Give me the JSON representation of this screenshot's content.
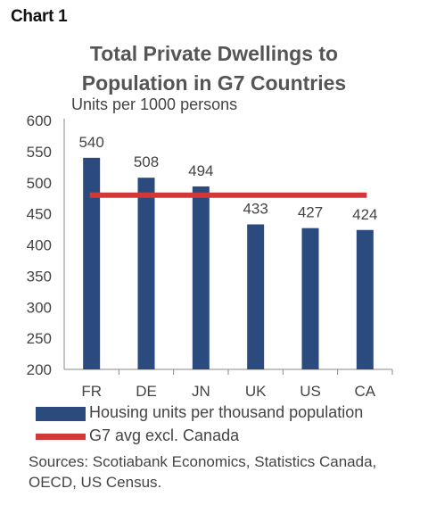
{
  "chart_label": "Chart 1",
  "chart_data": {
    "type": "bar",
    "title_lines": [
      "Total Private Dwellings to",
      "Population in G7 Countries"
    ],
    "ylabel": "Units per 1000 persons",
    "categories": [
      "FR",
      "DE",
      "JN",
      "UK",
      "US",
      "CA"
    ],
    "series": [
      {
        "name": "Housing units per thousand population",
        "type": "bar",
        "values": [
          540,
          508,
          494,
          433,
          427,
          424
        ],
        "color": "#2b4a7e"
      },
      {
        "name": "G7 avg excl. Canada",
        "type": "line",
        "value": 480,
        "color": "#d33838"
      }
    ],
    "data_labels": [
      "540",
      "508",
      "494",
      "433",
      "427",
      "424"
    ],
    "ylim": [
      200,
      600
    ],
    "yticks": [
      "200",
      "250",
      "300",
      "350",
      "400",
      "450",
      "500",
      "550",
      "600"
    ],
    "grid": false,
    "legend_position": "bottom"
  },
  "sources": "Sources: Scotiabank Economics, Statistics Canada, OECD, US Census."
}
